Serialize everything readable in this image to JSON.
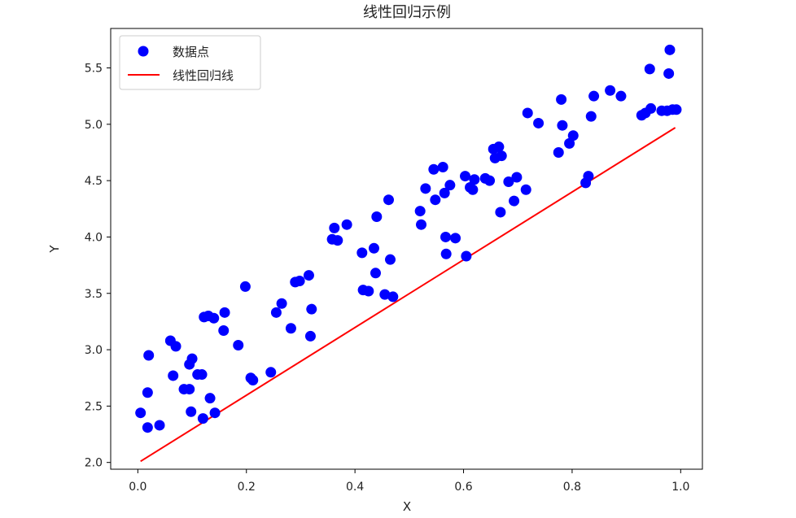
{
  "chart_data": {
    "type": "scatter",
    "title": "线性回归示例",
    "xlabel": "X",
    "ylabel": "Y",
    "xlim": [
      -0.05,
      1.04
    ],
    "ylim": [
      1.94,
      5.85
    ],
    "xticks": [
      0.0,
      0.2,
      0.4,
      0.6,
      0.8,
      1.0
    ],
    "xtick_labels": [
      "0.0",
      "0.2",
      "0.4",
      "0.6",
      "0.8",
      "1.0"
    ],
    "yticks": [
      2.0,
      2.5,
      3.0,
      3.5,
      4.0,
      4.5,
      5.0,
      5.5
    ],
    "ytick_labels": [
      "2.0",
      "2.5",
      "3.0",
      "3.5",
      "4.0",
      "4.5",
      "5.0",
      "5.5"
    ],
    "grid": false,
    "legend": "top-left",
    "series": [
      {
        "name": "数据点",
        "kind": "scatter",
        "color": "#0000ff",
        "points": [
          [
            0.005,
            2.44
          ],
          [
            0.018,
            2.62
          ],
          [
            0.018,
            2.31
          ],
          [
            0.02,
            2.95
          ],
          [
            0.04,
            2.33
          ],
          [
            0.06,
            3.08
          ],
          [
            0.065,
            2.77
          ],
          [
            0.07,
            3.03
          ],
          [
            0.085,
            2.65
          ],
          [
            0.095,
            2.65
          ],
          [
            0.095,
            2.87
          ],
          [
            0.098,
            2.45
          ],
          [
            0.1,
            2.92
          ],
          [
            0.11,
            2.78
          ],
          [
            0.118,
            2.78
          ],
          [
            0.12,
            2.39
          ],
          [
            0.122,
            3.29
          ],
          [
            0.13,
            3.3
          ],
          [
            0.133,
            2.57
          ],
          [
            0.14,
            3.28
          ],
          [
            0.142,
            2.44
          ],
          [
            0.158,
            3.17
          ],
          [
            0.16,
            3.33
          ],
          [
            0.185,
            3.04
          ],
          [
            0.198,
            3.56
          ],
          [
            0.208,
            2.75
          ],
          [
            0.212,
            2.73
          ],
          [
            0.245,
            2.8
          ],
          [
            0.255,
            3.33
          ],
          [
            0.265,
            3.41
          ],
          [
            0.282,
            3.19
          ],
          [
            0.29,
            3.6
          ],
          [
            0.298,
            3.61
          ],
          [
            0.315,
            3.66
          ],
          [
            0.318,
            3.12
          ],
          [
            0.32,
            3.36
          ],
          [
            0.358,
            3.98
          ],
          [
            0.362,
            4.08
          ],
          [
            0.368,
            3.97
          ],
          [
            0.385,
            4.11
          ],
          [
            0.413,
            3.86
          ],
          [
            0.415,
            3.53
          ],
          [
            0.425,
            3.52
          ],
          [
            0.435,
            3.9
          ],
          [
            0.438,
            3.68
          ],
          [
            0.44,
            4.18
          ],
          [
            0.455,
            3.49
          ],
          [
            0.462,
            4.33
          ],
          [
            0.465,
            3.8
          ],
          [
            0.47,
            3.47
          ],
          [
            0.52,
            4.23
          ],
          [
            0.522,
            4.11
          ],
          [
            0.53,
            4.43
          ],
          [
            0.545,
            4.6
          ],
          [
            0.548,
            4.33
          ],
          [
            0.562,
            4.62
          ],
          [
            0.565,
            4.39
          ],
          [
            0.567,
            4.0
          ],
          [
            0.568,
            3.85
          ],
          [
            0.575,
            4.46
          ],
          [
            0.585,
            3.99
          ],
          [
            0.603,
            4.54
          ],
          [
            0.605,
            3.83
          ],
          [
            0.612,
            4.44
          ],
          [
            0.617,
            4.42
          ],
          [
            0.62,
            4.51
          ],
          [
            0.64,
            4.52
          ],
          [
            0.648,
            4.5
          ],
          [
            0.655,
            4.78
          ],
          [
            0.658,
            4.7
          ],
          [
            0.665,
            4.8
          ],
          [
            0.668,
            4.22
          ],
          [
            0.67,
            4.72
          ],
          [
            0.683,
            4.49
          ],
          [
            0.693,
            4.32
          ],
          [
            0.698,
            4.53
          ],
          [
            0.715,
            4.42
          ],
          [
            0.718,
            5.1
          ],
          [
            0.738,
            5.01
          ],
          [
            0.775,
            4.75
          ],
          [
            0.78,
            5.22
          ],
          [
            0.782,
            4.99
          ],
          [
            0.795,
            4.83
          ],
          [
            0.802,
            4.9
          ],
          [
            0.825,
            4.48
          ],
          [
            0.83,
            4.54
          ],
          [
            0.835,
            5.07
          ],
          [
            0.84,
            5.25
          ],
          [
            0.87,
            5.3
          ],
          [
            0.89,
            5.25
          ],
          [
            0.928,
            5.08
          ],
          [
            0.935,
            5.1
          ],
          [
            0.943,
            5.49
          ],
          [
            0.945,
            5.14
          ],
          [
            0.965,
            5.12
          ],
          [
            0.975,
            5.12
          ],
          [
            0.978,
            5.45
          ],
          [
            0.98,
            5.66
          ],
          [
            0.985,
            5.13
          ],
          [
            0.992,
            5.13
          ]
        ]
      },
      {
        "name": "线性回归线",
        "kind": "line",
        "color": "#ff0000",
        "points": [
          [
            0.005,
            2.01
          ],
          [
            0.99,
            4.97
          ]
        ]
      }
    ]
  }
}
